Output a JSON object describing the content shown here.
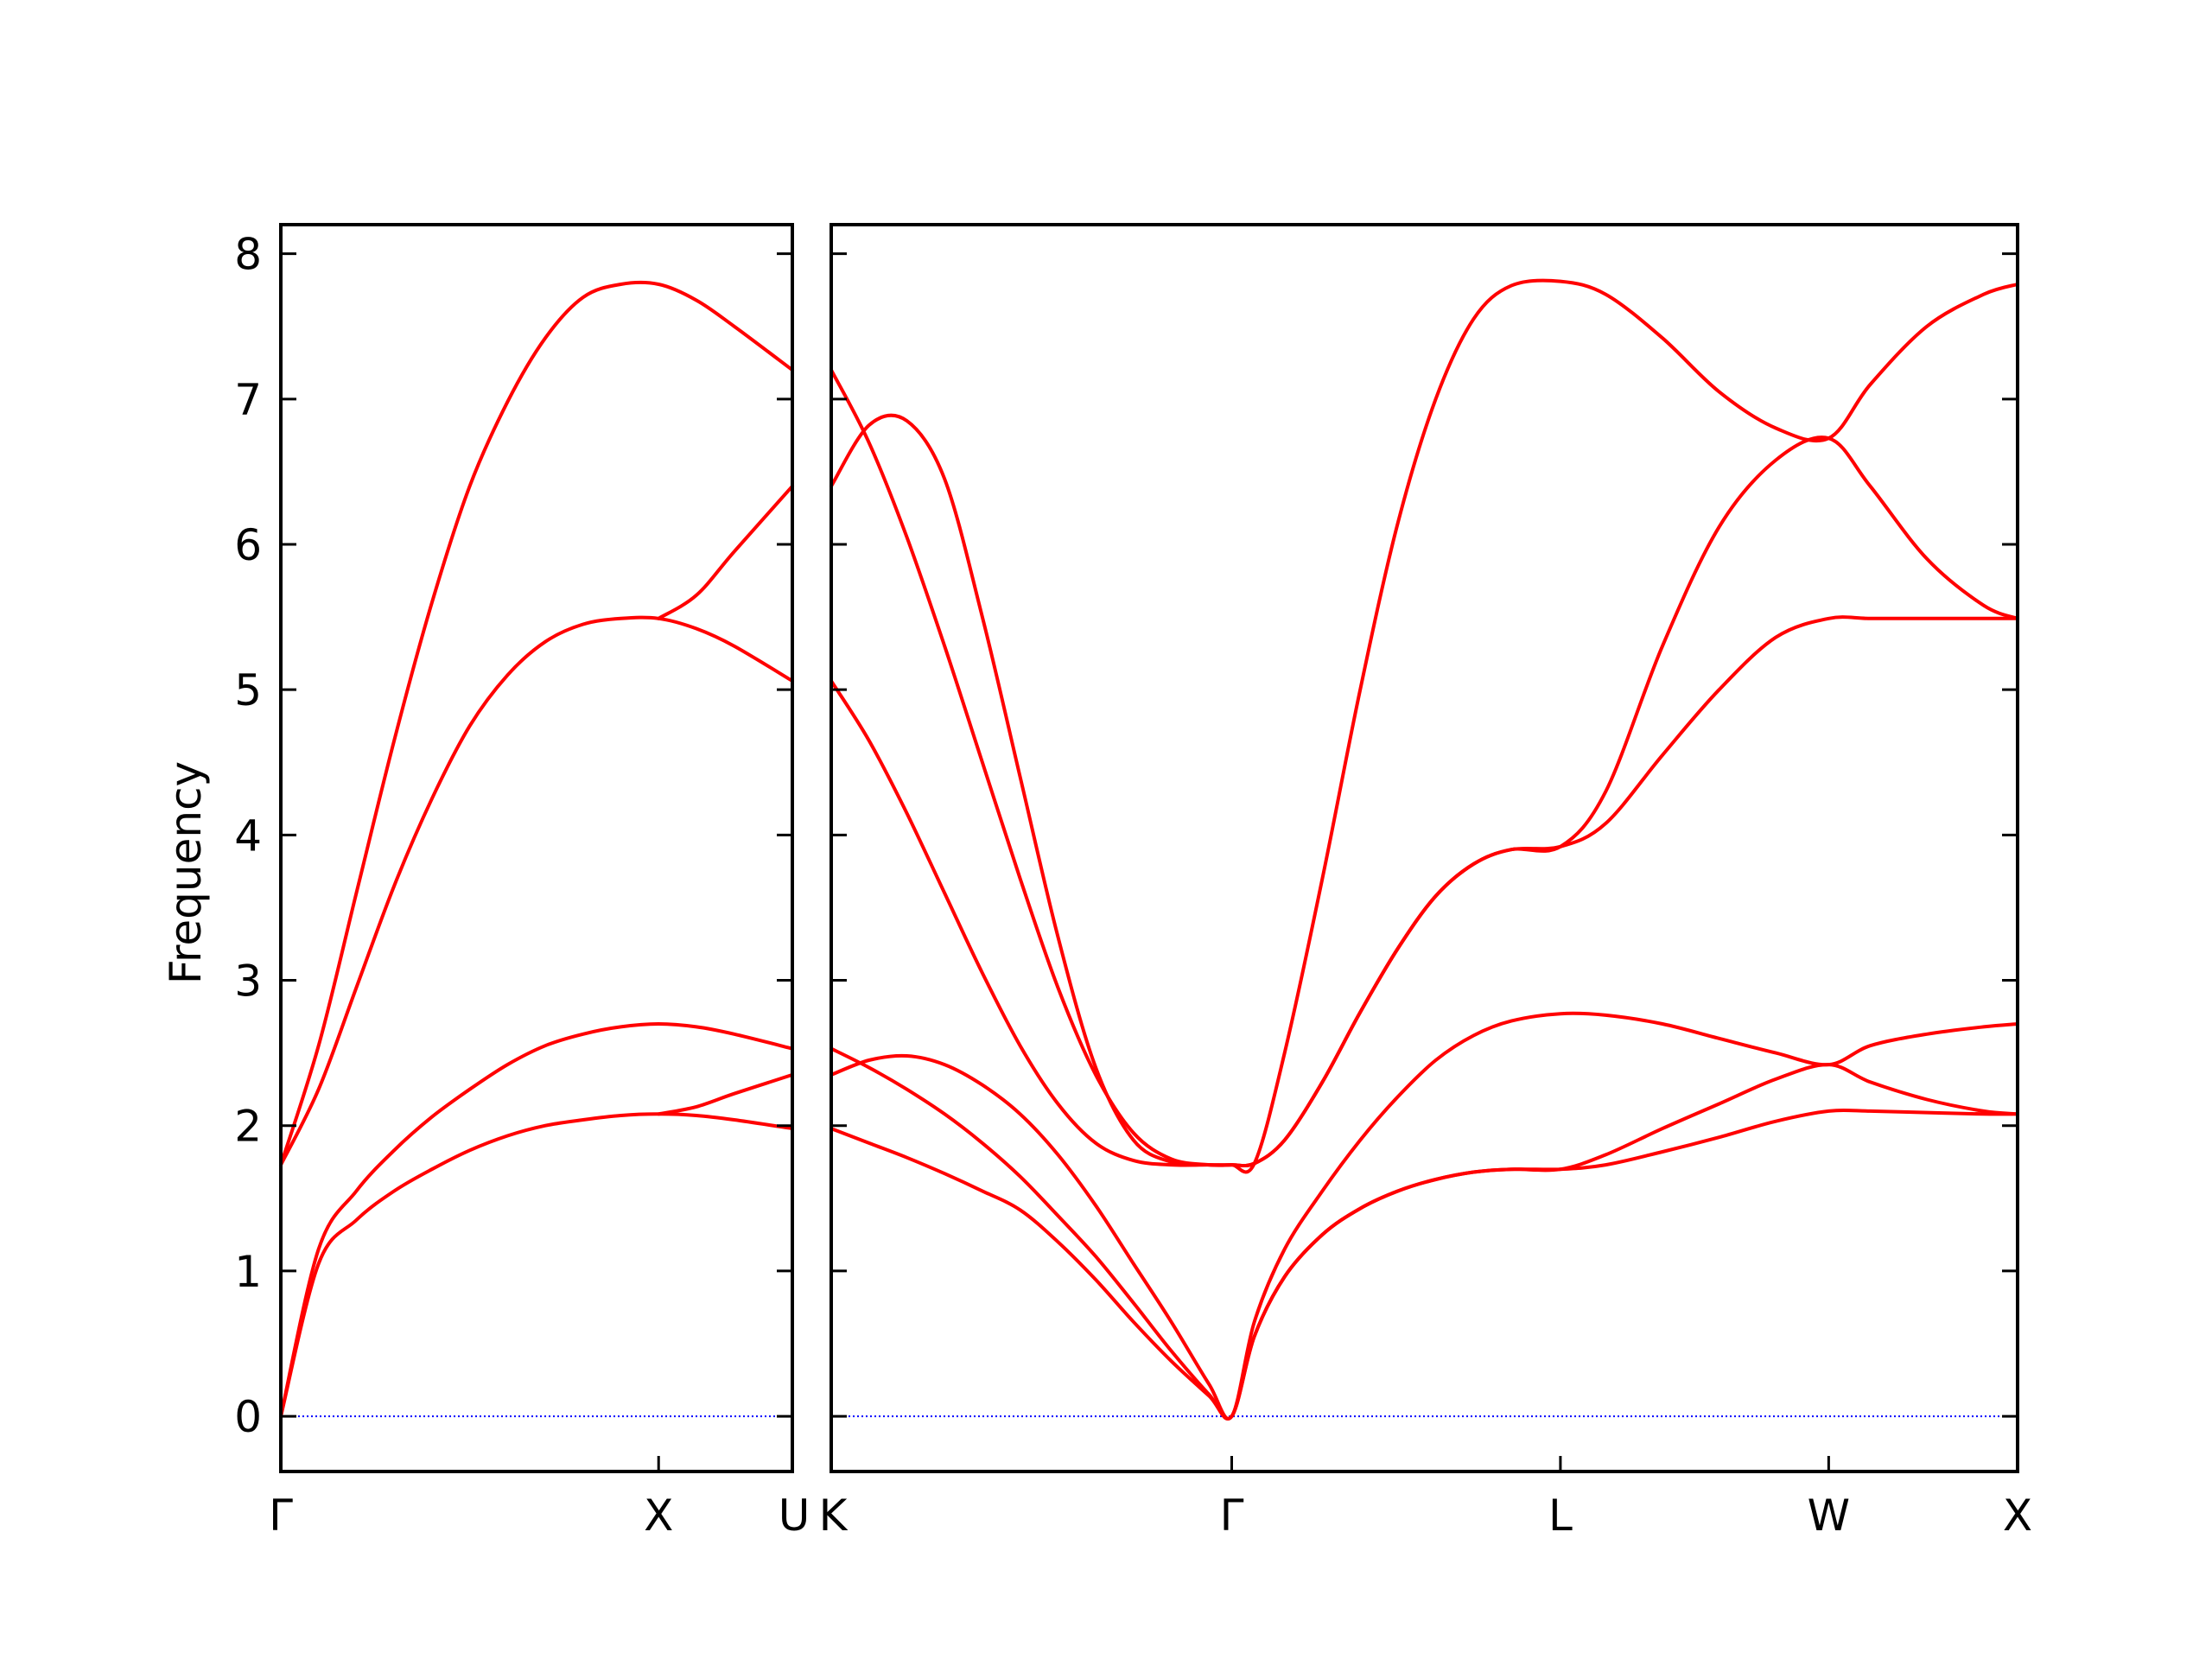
{
  "chart_data": {
    "type": "line",
    "ylabel": "Frequency",
    "xlabel": "",
    "ylim": [
      -0.38,
      8.2
    ],
    "yticks": [
      0,
      1,
      2,
      3,
      4,
      5,
      6,
      7,
      8
    ],
    "grid": false,
    "legend": false,
    "colors": {
      "band": "#ff0000",
      "zero_line": "#0000ff",
      "frame": "#000000"
    },
    "panels": [
      {
        "xticks": [
          {
            "label": "Γ",
            "x": 0
          },
          {
            "label": "X",
            "x": 1
          },
          {
            "label": "U",
            "x": 1.354
          }
        ],
        "xlim": [
          0,
          1.354
        ],
        "x": [
          0,
          0.1,
          0.2,
          0.3,
          0.4,
          0.5,
          0.6,
          0.7,
          0.8,
          0.9,
          1.0,
          1.1,
          1.2,
          1.354
        ],
        "series": [
          {
            "values": [
              0.0,
              1.05,
              1.35,
              1.55,
              1.7,
              1.83,
              1.93,
              2.0,
              2.04,
              2.07,
              2.08,
              2.07,
              2.04,
              1.98
            ]
          },
          {
            "values": [
              0.0,
              1.15,
              1.55,
              1.83,
              2.06,
              2.25,
              2.42,
              2.55,
              2.63,
              2.68,
              2.7,
              2.68,
              2.63,
              2.53
            ]
          },
          {
            "values": [
              1.73,
              2.25,
              2.95,
              3.65,
              4.25,
              4.75,
              5.1,
              5.33,
              5.45,
              5.49,
              5.49,
              5.42,
              5.3,
              5.06
            ]
          },
          {
            "values": [
              1.73,
              2.55,
              3.6,
              4.65,
              5.6,
              6.4,
              6.98,
              7.42,
              7.7,
              7.79,
              7.79,
              7.68,
              7.5,
              7.2
            ]
          },
          {
            "values": [
              null,
              null,
              null,
              null,
              null,
              null,
              null,
              null,
              null,
              null,
              2.08,
              2.13,
              2.22,
              2.35
            ]
          },
          {
            "values": [
              null,
              null,
              null,
              null,
              null,
              null,
              null,
              null,
              null,
              null,
              5.49,
              5.65,
              5.95,
              6.4
            ]
          }
        ]
      },
      {
        "xticks": [
          {
            "label": "K",
            "x": 0
          },
          {
            "label": "Γ",
            "x": 1.06
          },
          {
            "label": "L",
            "x": 1.93
          },
          {
            "label": "W",
            "x": 2.64
          },
          {
            "label": "X",
            "x": 3.14
          }
        ],
        "xlim": [
          0,
          3.14
        ],
        "x": [
          0,
          0.1,
          0.2,
          0.3,
          0.4,
          0.5,
          0.6,
          0.7,
          0.8,
          0.9,
          1.0,
          1.06,
          1.12,
          1.2,
          1.3,
          1.4,
          1.5,
          1.6,
          1.7,
          1.8,
          1.93,
          2.05,
          2.2,
          2.35,
          2.5,
          2.64,
          2.75,
          2.9,
          3.05,
          3.14
        ],
        "series": [
          {
            "values": [
              1.98,
              1.88,
              1.78,
              1.67,
              1.55,
              1.42,
              1.2,
              0.94,
              0.65,
              0.38,
              0.14,
              0.0,
              0.55,
              0.96,
              1.25,
              1.43,
              1.55,
              1.63,
              1.68,
              1.7,
              1.7,
              1.73,
              1.82,
              1.92,
              2.03,
              2.1,
              2.1,
              2.09,
              2.08,
              2.08
            ]
          },
          {
            "values": [
              2.35,
              2.45,
              2.48,
              2.42,
              2.28,
              2.08,
              1.8,
              1.45,
              1.05,
              0.65,
              0.22,
              0.0,
              0.65,
              1.15,
              1.55,
              1.9,
              2.2,
              2.45,
              2.62,
              2.72,
              2.77,
              2.76,
              2.7,
              2.6,
              2.5,
              2.42,
              2.55,
              2.63,
              2.68,
              2.7
            ]
          },
          {
            "values": [
              2.53,
              2.4,
              2.25,
              2.08,
              1.88,
              1.65,
              1.38,
              1.1,
              0.78,
              0.45,
              0.15,
              0.0,
              0.55,
              0.96,
              1.25,
              1.43,
              1.55,
              1.63,
              1.68,
              1.7,
              1.7,
              1.8,
              1.98,
              2.15,
              2.32,
              2.42,
              2.3,
              2.18,
              2.1,
              2.08
            ]
          },
          {
            "values": [
              5.06,
              4.65,
              4.15,
              3.6,
              3.05,
              2.55,
              2.15,
              1.88,
              1.76,
              1.73,
              1.73,
              1.73,
              1.74,
              1.9,
              2.3,
              2.78,
              3.22,
              3.58,
              3.8,
              3.9,
              3.92,
              4.08,
              4.55,
              5.0,
              5.36,
              5.49,
              5.49,
              5.49,
              5.49,
              5.49
            ]
          },
          {
            "values": [
              6.4,
              6.82,
              6.85,
              6.45,
              5.5,
              4.4,
              3.3,
              2.4,
              1.9,
              1.75,
              1.73,
              1.73,
              1.74,
              1.9,
              2.3,
              2.78,
              3.22,
              3.58,
              3.8,
              3.9,
              3.92,
              4.3,
              5.3,
              6.12,
              6.58,
              6.73,
              6.4,
              5.9,
              5.58,
              5.49
            ]
          },
          {
            "values": [
              7.2,
              6.7,
              6.05,
              5.3,
              4.5,
              3.7,
              2.95,
              2.35,
              1.95,
              1.77,
              1.73,
              1.73,
              1.74,
              2.5,
              3.7,
              5.0,
              6.15,
              7.0,
              7.55,
              7.78,
              7.81,
              7.72,
              7.42,
              7.05,
              6.8,
              6.73,
              7.1,
              7.5,
              7.72,
              7.79
            ]
          }
        ]
      }
    ]
  }
}
